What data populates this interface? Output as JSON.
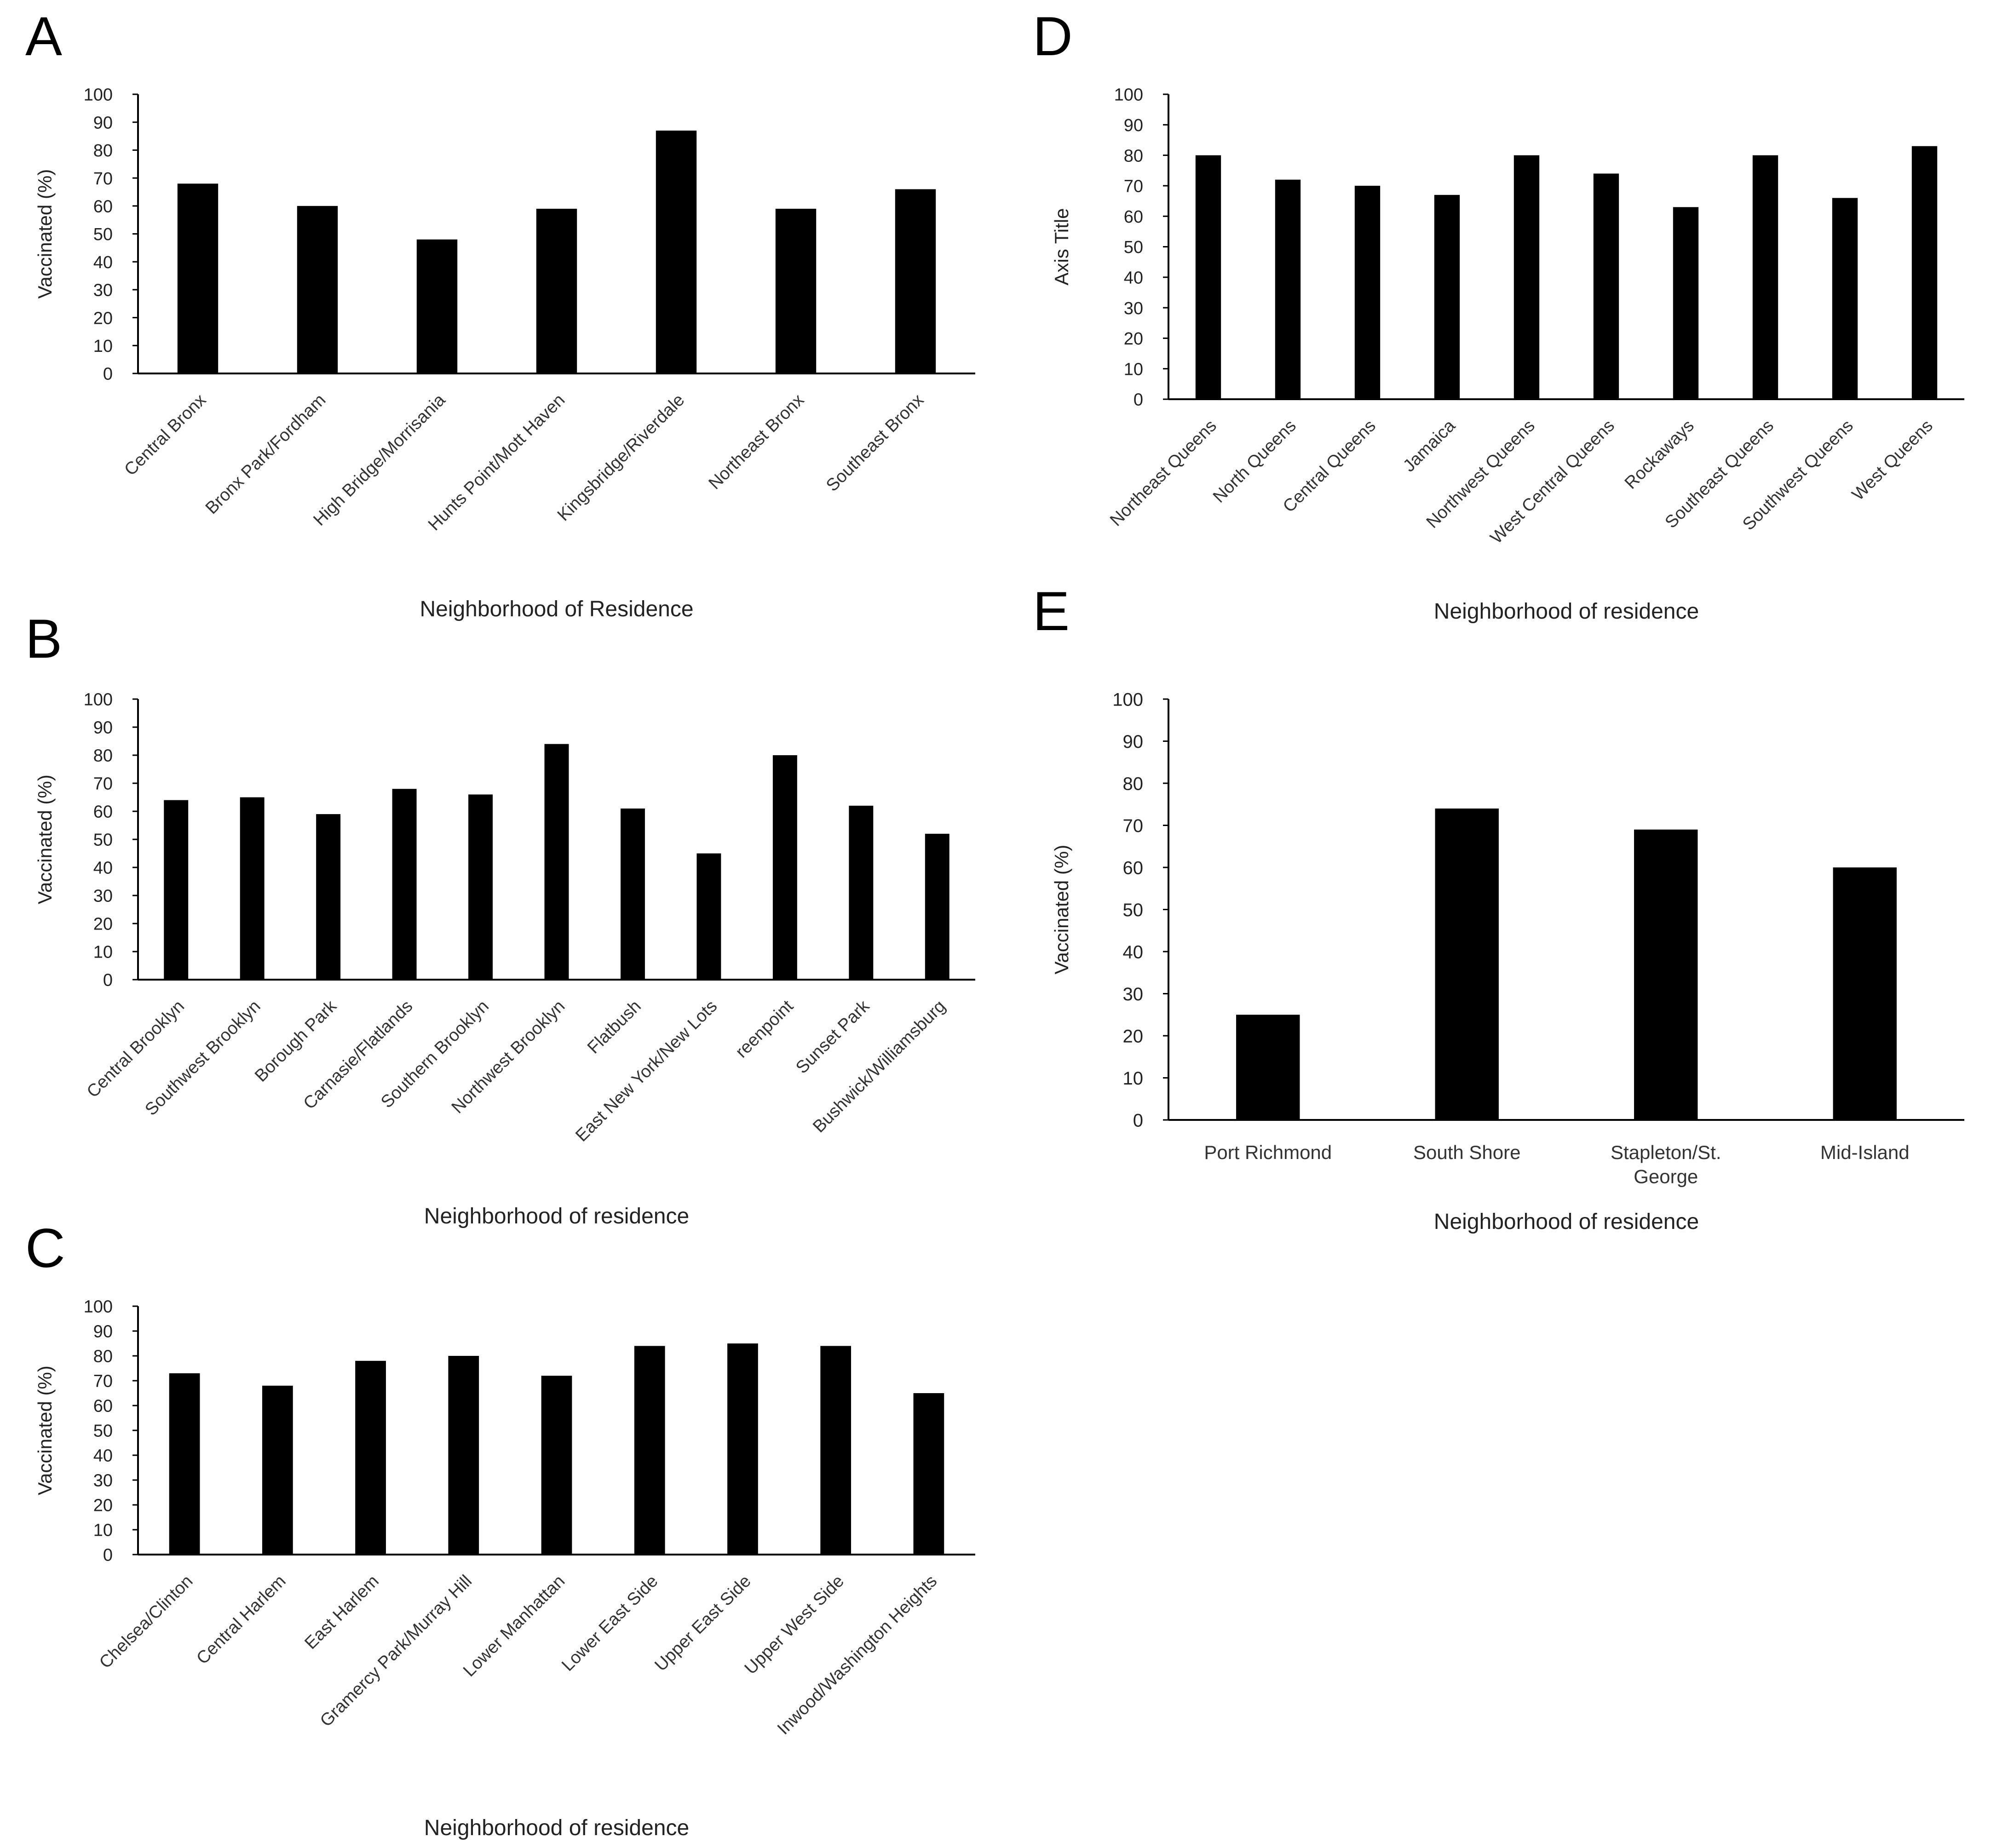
{
  "chart_data": [
    {
      "panel_label": "A",
      "type": "bar",
      "title": "",
      "xlabel": "Neighborhood of Residence",
      "ylabel": "Vaccinated (%)",
      "ylim": [
        0,
        100
      ],
      "yticks": [
        0,
        10,
        20,
        30,
        40,
        50,
        60,
        70,
        80,
        90,
        100
      ],
      "grid": false,
      "label_rotation": "diagonal",
      "categories": [
        "Central Bronx",
        "Bronx Park/Fordham",
        "High Bridge/Morrisania",
        "Hunts Point/Mott Haven",
        "Kingsbridge/Riverdale",
        "Northeast Bronx",
        "Southeast Bronx"
      ],
      "values": [
        68,
        60,
        48,
        59,
        87,
        59,
        66
      ]
    },
    {
      "panel_label": "B",
      "type": "bar",
      "title": "",
      "xlabel": "Neighborhood of residence",
      "ylabel": "Vaccinated (%)",
      "ylim": [
        0,
        100
      ],
      "yticks": [
        0,
        10,
        20,
        30,
        40,
        50,
        60,
        70,
        80,
        90,
        100
      ],
      "grid": false,
      "label_rotation": "diagonal",
      "categories": [
        "Central Brooklyn",
        "Southwest Brooklyn",
        "Borough Park",
        "Carnasie/Flatlands",
        "Southern Brooklyn",
        "Northwest Brooklyn",
        "Flatbush",
        "East New York/New Lots",
        "reenpoint",
        "Sunset Park",
        "Bushwick/Williamsburg"
      ],
      "values": [
        64,
        65,
        59,
        68,
        66,
        84,
        61,
        45,
        80,
        62,
        52
      ]
    },
    {
      "panel_label": "C",
      "type": "bar",
      "title": "",
      "xlabel": "Neighborhood of residence",
      "ylabel": "Vaccinated (%)",
      "ylim": [
        0,
        100
      ],
      "yticks": [
        0,
        10,
        20,
        30,
        40,
        50,
        60,
        70,
        80,
        90,
        100
      ],
      "grid": false,
      "label_rotation": "diagonal",
      "categories": [
        "Chelsea/Clinton",
        "Central Harlem",
        "East Harlem",
        "Gramercy Park/Murray Hill",
        "Lower Manhattan",
        "Lower East Side",
        "Upper East Side",
        "Upper West Side",
        "Inwood/Washington Heights"
      ],
      "values": [
        73,
        68,
        78,
        80,
        72,
        84,
        85,
        84,
        65
      ]
    },
    {
      "panel_label": "D",
      "type": "bar",
      "title": "",
      "xlabel": "Neighborhood of residence",
      "ylabel": "Axis Title",
      "ylim": [
        0,
        100
      ],
      "yticks": [
        0,
        10,
        20,
        30,
        40,
        50,
        60,
        70,
        80,
        90,
        100
      ],
      "grid": false,
      "label_rotation": "diagonal",
      "categories": [
        "Northeast Queens",
        "North Queens",
        "Central Queens",
        "Jamaica",
        "Northwest Queens",
        "West Central Queens",
        "Rockaways",
        "Southeast Queens",
        "Southwest Queens",
        "West Queens"
      ],
      "values": [
        80,
        72,
        70,
        67,
        80,
        74,
        63,
        80,
        66,
        83
      ]
    },
    {
      "panel_label": "E",
      "type": "bar",
      "title": "",
      "xlabel": "Neighborhood of residence",
      "ylabel": "Vaccinated (%)",
      "ylim": [
        0,
        100
      ],
      "yticks": [
        0,
        10,
        20,
        30,
        40,
        50,
        60,
        70,
        80,
        90,
        100
      ],
      "grid": false,
      "label_rotation": "horizontal",
      "categories": [
        "Port Richmond",
        "South Shore",
        "Stapleton/St. George",
        "Mid-Island"
      ],
      "category_lines": [
        [
          "Port Richmond"
        ],
        [
          "South Shore"
        ],
        [
          "Stapleton/St.",
          "George"
        ],
        [
          "Mid-Island"
        ]
      ],
      "values": [
        25,
        74,
        69,
        60
      ]
    }
  ]
}
